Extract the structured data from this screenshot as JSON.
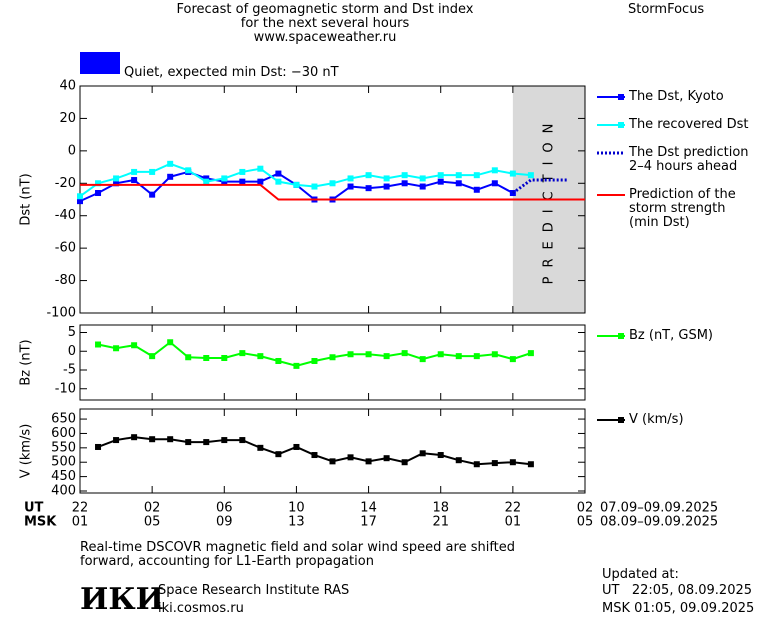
{
  "chart_data": [
    {
      "type": "line",
      "title": "Forecast of geomagnetic storm and Dst index\nfor the next several hours\nwww.spaceweather.ru",
      "brand": "StormFocus",
      "annotation": "Quiet, expected min Dst: −30 nT",
      "ylabel": "Dst (nT)",
      "xlim": [
        0,
        28
      ],
      "ylim": [
        -100,
        40
      ],
      "yticks": [
        -100,
        -80,
        -60,
        -40,
        -20,
        0,
        20,
        40
      ],
      "shaded_region": {
        "x": [
          24,
          28
        ],
        "label": "PREDICTION",
        "color": "#d9d9d9"
      },
      "series": [
        {
          "name": "The Dst, Kyoto",
          "color": "#0000ff",
          "marker": "square",
          "x": [
            0,
            1,
            2,
            3,
            4,
            5,
            6,
            7,
            8,
            9,
            10,
            11,
            12,
            13,
            14,
            15,
            16,
            17,
            18,
            19,
            20,
            21,
            22,
            23,
            24
          ],
          "values": [
            -31,
            -26,
            -20,
            -18,
            -27,
            -16,
            -13,
            -17,
            -19,
            -19,
            -19,
            -14,
            -21,
            -30,
            -30,
            -22,
            -23,
            -22,
            -20,
            -22,
            -19,
            -20,
            -24,
            -20,
            -26
          ]
        },
        {
          "name": "The recovered Dst",
          "color": "#00ffff",
          "marker": "square",
          "x": [
            0,
            1,
            2,
            3,
            4,
            5,
            6,
            7,
            8,
            9,
            10,
            11,
            12,
            13,
            14,
            15,
            16,
            17,
            18,
            19,
            20,
            21,
            22,
            23,
            24,
            25
          ],
          "values": [
            -28,
            -20,
            -17,
            -13,
            -13,
            -8,
            -12,
            -19,
            -17,
            -13,
            -11,
            -19,
            -21,
            -22,
            -20,
            -17,
            -15,
            -17,
            -15,
            -17,
            -15,
            -15,
            -15,
            -12,
            -14,
            -15
          ]
        },
        {
          "name": "The Dst prediction\n2–4 hours ahead",
          "color": "#0000cc",
          "dash": "dotted",
          "x": [
            24,
            25,
            27
          ],
          "values": [
            -26,
            -18,
            -18
          ]
        },
        {
          "name": "Prediction of the\nstorm strength\n(min Dst)",
          "color": "#ff0000",
          "x": [
            0,
            10,
            11,
            28
          ],
          "values": [
            -21,
            -21,
            -30,
            -30
          ]
        }
      ]
    },
    {
      "type": "line",
      "ylabel": "Bz (nT)",
      "xlim": [
        0,
        28
      ],
      "ylim": [
        -13,
        7
      ],
      "yticks": [
        -10,
        -5,
        0,
        5
      ],
      "series": [
        {
          "name": "Bz (nT, GSM)",
          "color": "#00ff00",
          "marker": "square",
          "x": [
            1,
            2,
            3,
            4,
            5,
            6,
            7,
            8,
            9,
            10,
            11,
            12,
            13,
            14,
            15,
            16,
            17,
            18,
            19,
            20,
            21,
            22,
            23,
            24,
            25
          ],
          "values": [
            1.8,
            0.8,
            1.6,
            -1.3,
            2.4,
            -1.6,
            -1.8,
            -1.8,
            -0.5,
            -1.3,
            -2.6,
            -3.9,
            -2.6,
            -1.6,
            -0.8,
            -0.8,
            -1.3,
            -0.5,
            -2.1,
            -0.8,
            -1.3,
            -1.3,
            -0.8,
            -2.1,
            -0.5
          ]
        }
      ]
    },
    {
      "type": "line",
      "ylabel": "V (km/s)",
      "xlim": [
        0,
        28
      ],
      "ylim": [
        393,
        685
      ],
      "yticks": [
        400,
        450,
        500,
        550,
        600,
        650
      ],
      "xticks": [
        {
          "value": 0,
          "label": "22"
        },
        {
          "value": 4,
          "label": "02"
        },
        {
          "value": 8,
          "label": "06"
        },
        {
          "value": 12,
          "label": "10"
        },
        {
          "value": 16,
          "label": "14"
        },
        {
          "value": 20,
          "label": "18"
        },
        {
          "value": 24,
          "label": "22"
        },
        {
          "value": 28,
          "label": "02"
        }
      ],
      "xticks_msk": [
        {
          "value": 0,
          "label": "01"
        },
        {
          "value": 4,
          "label": "05"
        },
        {
          "value": 8,
          "label": "09"
        },
        {
          "value": 12,
          "label": "13"
        },
        {
          "value": 16,
          "label": "17"
        },
        {
          "value": 20,
          "label": "21"
        },
        {
          "value": 24,
          "label": "01"
        },
        {
          "value": 28,
          "label": "05"
        }
      ],
      "x_row_labels": [
        "UT",
        "MSK"
      ],
      "x_ranges": [
        "07.09–09.09.2025",
        "08.09–09.09.2025"
      ],
      "series": [
        {
          "name": "V (km/s)",
          "color": "#000000",
          "marker": "square",
          "x": [
            1,
            2,
            3,
            4,
            5,
            6,
            7,
            8,
            9,
            10,
            11,
            12,
            13,
            14,
            15,
            16,
            17,
            18,
            19,
            20,
            21,
            22,
            23,
            24,
            25
          ],
          "values": [
            553,
            577,
            587,
            580,
            580,
            570,
            570,
            577,
            577,
            550,
            528,
            553,
            525,
            503,
            517,
            503,
            514,
            500,
            531,
            525,
            507,
            493,
            497,
            500,
            493
          ]
        }
      ]
    }
  ],
  "footer": {
    "note": "Real-time DSCOVR magnetic field and solar wind speed are shifted\nforward, accounting for L1-Earth propagation",
    "logo": "ИКИ",
    "institute": "Space Research Institute RAS",
    "url": "iki.cosmos.ru",
    "updated_label": "Updated at:",
    "updated_ut": "UT   22:05, 08.09.2025",
    "updated_msk": "MSK 01:05, 09.09.2025"
  }
}
